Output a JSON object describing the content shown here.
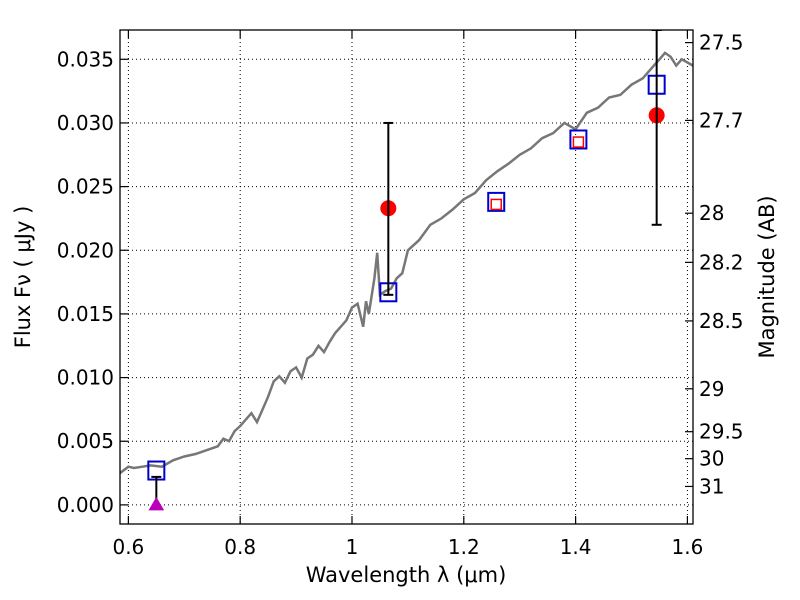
{
  "chart_data": {
    "type": "scatter",
    "xlabel": "Wavelength  λ (μm)",
    "ylabel": "Flux  Fν  ( μJy )",
    "ylabel_right": "Magnitude (AB)",
    "xlim": [
      0.585,
      1.61
    ],
    "ylim": [
      -0.0015,
      0.0373
    ],
    "grid": true,
    "x_ticks": [
      {
        "value": 0.6,
        "label": ""
      },
      {
        "value": 0.8,
        "label": "0.8"
      },
      {
        "value": 1.0,
        "label": "1"
      },
      {
        "value": 1.2,
        "label": "1.2"
      },
      {
        "value": 1.4,
        "label": "1.4"
      },
      {
        "value": 1.6,
        "label": "1.6"
      }
    ],
    "y_ticks": [
      {
        "value": 0.0,
        "label": "0.000"
      },
      {
        "value": 0.005,
        "label": "0.005"
      },
      {
        "value": 0.01,
        "label": "0.010"
      },
      {
        "value": 0.015,
        "label": "0.015"
      },
      {
        "value": 0.02,
        "label": "0.020"
      },
      {
        "value": 0.025,
        "label": "0.025"
      },
      {
        "value": 0.03,
        "label": "0.030"
      },
      {
        "value": 0.035,
        "label": "0.035"
      }
    ],
    "x_first_label": "0.6",
    "mag_ticks": [
      {
        "label": "27.5",
        "flux": 0.03631
      },
      {
        "label": "27.7",
        "flux": 0.0302
      },
      {
        "label": "28",
        "flux": 0.02291
      },
      {
        "label": "28.2",
        "flux": 0.01905
      },
      {
        "label": "28.5",
        "flux": 0.01445
      },
      {
        "label": "29",
        "flux": 0.00912
      },
      {
        "label": "29.5",
        "flux": 0.00575
      },
      {
        "label": "30",
        "flux": 0.00363
      },
      {
        "label": "31",
        "flux": 0.00145
      }
    ],
    "series": [
      {
        "kind": "sed_line",
        "color": "#777777",
        "x": [
          0.585,
          0.6,
          0.61,
          0.625,
          0.64,
          0.66,
          0.68,
          0.7,
          0.72,
          0.74,
          0.76,
          0.77,
          0.78,
          0.79,
          0.8,
          0.81,
          0.82,
          0.83,
          0.84,
          0.85,
          0.86,
          0.87,
          0.88,
          0.89,
          0.9,
          0.91,
          0.92,
          0.93,
          0.94,
          0.95,
          0.96,
          0.97,
          0.98,
          0.99,
          1.0,
          1.01,
          1.02,
          1.025,
          1.03,
          1.04,
          1.045,
          1.05,
          1.06,
          1.07,
          1.08,
          1.09,
          1.1,
          1.12,
          1.14,
          1.16,
          1.18,
          1.2,
          1.22,
          1.24,
          1.26,
          1.28,
          1.3,
          1.32,
          1.34,
          1.36,
          1.38,
          1.4,
          1.42,
          1.44,
          1.46,
          1.48,
          1.5,
          1.52,
          1.54,
          1.55,
          1.56,
          1.57,
          1.58,
          1.59,
          1.61
        ],
        "y": [
          0.0025,
          0.003,
          0.0029,
          0.003,
          0.0031,
          0.003,
          0.0035,
          0.0038,
          0.004,
          0.0043,
          0.0046,
          0.0052,
          0.005,
          0.0058,
          0.0062,
          0.0067,
          0.0072,
          0.0065,
          0.0075,
          0.0085,
          0.0097,
          0.0101,
          0.0096,
          0.0105,
          0.0108,
          0.01,
          0.0115,
          0.0118,
          0.0125,
          0.012,
          0.0128,
          0.0135,
          0.014,
          0.0145,
          0.0155,
          0.0158,
          0.014,
          0.016,
          0.015,
          0.0178,
          0.0198,
          0.0165,
          0.0168,
          0.017,
          0.0178,
          0.0182,
          0.02,
          0.0208,
          0.022,
          0.0225,
          0.0232,
          0.024,
          0.0245,
          0.0255,
          0.0262,
          0.0268,
          0.0275,
          0.028,
          0.0288,
          0.0292,
          0.03,
          0.0295,
          0.0308,
          0.0312,
          0.032,
          0.0322,
          0.033,
          0.0335,
          0.0345,
          0.035,
          0.0355,
          0.0352,
          0.0345,
          0.035,
          0.0345
        ]
      },
      {
        "kind": "model_boxes",
        "color": "#0000cc",
        "x": [
          0.65,
          1.065,
          1.258,
          1.405,
          1.545
        ],
        "y": [
          0.0027,
          0.0167,
          0.0238,
          0.0287,
          0.033
        ]
      },
      {
        "kind": "observed",
        "color": "#ff0000",
        "x": [
          1.065,
          1.258,
          1.405,
          1.545
        ],
        "y": [
          0.0233,
          0.0236,
          0.0285,
          0.0306
        ],
        "marker": [
          "circle",
          "square",
          "square",
          "circle"
        ]
      },
      {
        "kind": "errorbars",
        "color": "#000000",
        "x": [
          0.65,
          1.065,
          1.545
        ],
        "low": [
          -0.0003,
          0.0165,
          0.022
        ],
        "high": [
          0.0022,
          0.03,
          0.0373
        ]
      },
      {
        "kind": "upper_limit",
        "color": "#bb00bb",
        "x": [
          0.65
        ],
        "y": [
          0.0
        ]
      }
    ]
  }
}
